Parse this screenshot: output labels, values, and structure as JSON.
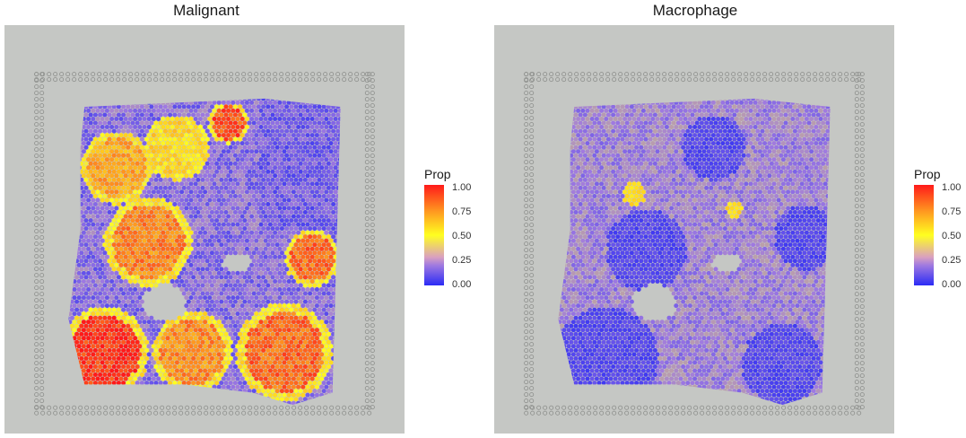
{
  "colors": {
    "low": "#2b2bf5",
    "mid_low": "#a07ae0",
    "mid": "#ffff20",
    "mid_high": "#ffa020",
    "high": "#ff1a1a",
    "tissue_background": "#c5c7c4"
  },
  "chart_data": [
    {
      "type": "heatmap",
      "title": "Malignant",
      "legend_title": "Prop",
      "legend_ticks": [
        "1.00",
        "0.75",
        "0.50",
        "0.25",
        "0.00"
      ],
      "value_range": [
        0,
        1
      ],
      "legend_placement": "right",
      "regions": [
        {
          "name": "",
          "value": 0.7,
          "kind": "high"
        },
        {
          "name": "",
          "value": 0.05,
          "kind": "low"
        }
      ]
    },
    {
      "type": "heatmap",
      "title": "Macrophage",
      "legend_title": "Prop",
      "legend_ticks": [
        "1.00",
        "0.75",
        "0.50",
        "0.25",
        "0.00"
      ],
      "value_range": [
        0,
        1
      ],
      "legend_placement": "right",
      "regions": [
        {
          "name": "",
          "value": 0.12,
          "kind": "low"
        },
        {
          "name": "",
          "value": 0.55,
          "kind": "hotspot"
        }
      ]
    }
  ]
}
